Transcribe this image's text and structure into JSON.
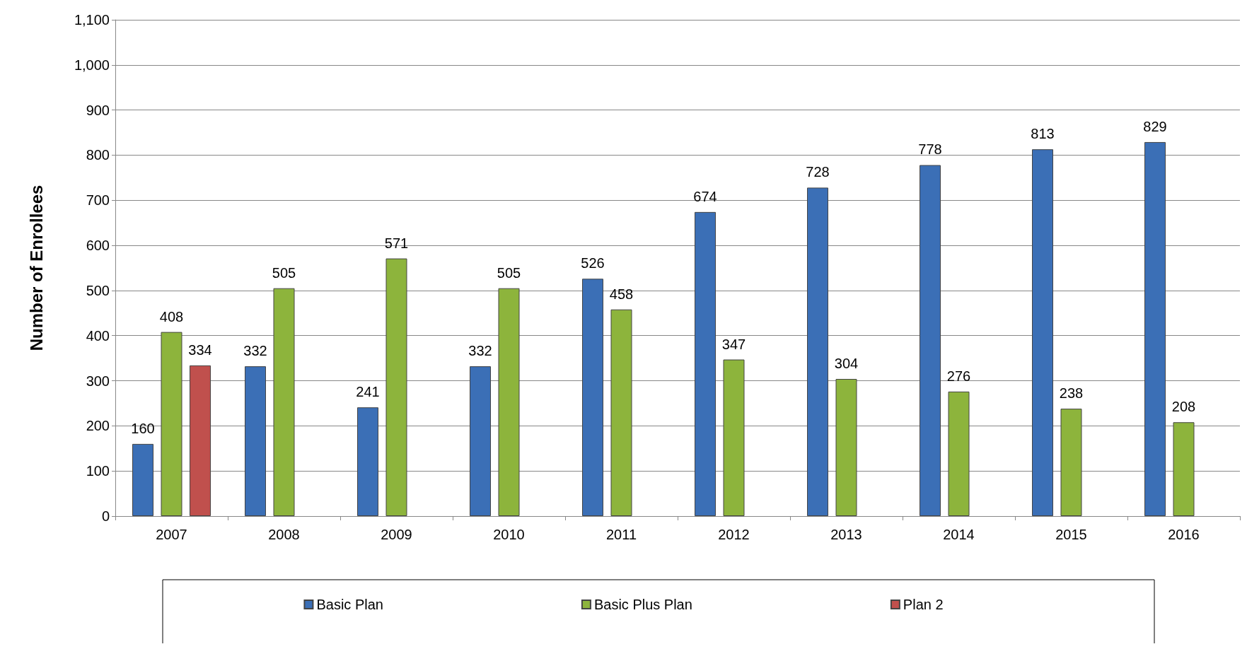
{
  "chart_data": {
    "type": "bar",
    "ylabel": "Number of Enrollees",
    "categories": [
      "2007",
      "2008",
      "2009",
      "2010",
      "2011",
      "2012",
      "2013",
      "2014",
      "2015",
      "2016"
    ],
    "series": [
      {
        "name": "Basic Plan",
        "color": "#3b6fb6",
        "values": [
          160,
          332,
          241,
          332,
          526,
          674,
          728,
          778,
          813,
          829
        ]
      },
      {
        "name": "Basic Plus Plan",
        "color": "#8db43c",
        "values": [
          408,
          505,
          571,
          505,
          458,
          347,
          304,
          276,
          238,
          208
        ]
      },
      {
        "name": "Plan 2",
        "color": "#c0504d",
        "values": [
          334,
          null,
          null,
          null,
          null,
          null,
          null,
          null,
          null,
          null
        ]
      }
    ],
    "ylim": [
      0,
      1100
    ],
    "yticks": [
      0,
      100,
      200,
      300,
      400,
      500,
      600,
      700,
      800,
      900,
      {
        "value": 1000,
        "label": "1,000"
      },
      {
        "value": 1100,
        "label": "1,100"
      }
    ],
    "grid": "y",
    "legend": "bottom",
    "data_labels": true
  }
}
